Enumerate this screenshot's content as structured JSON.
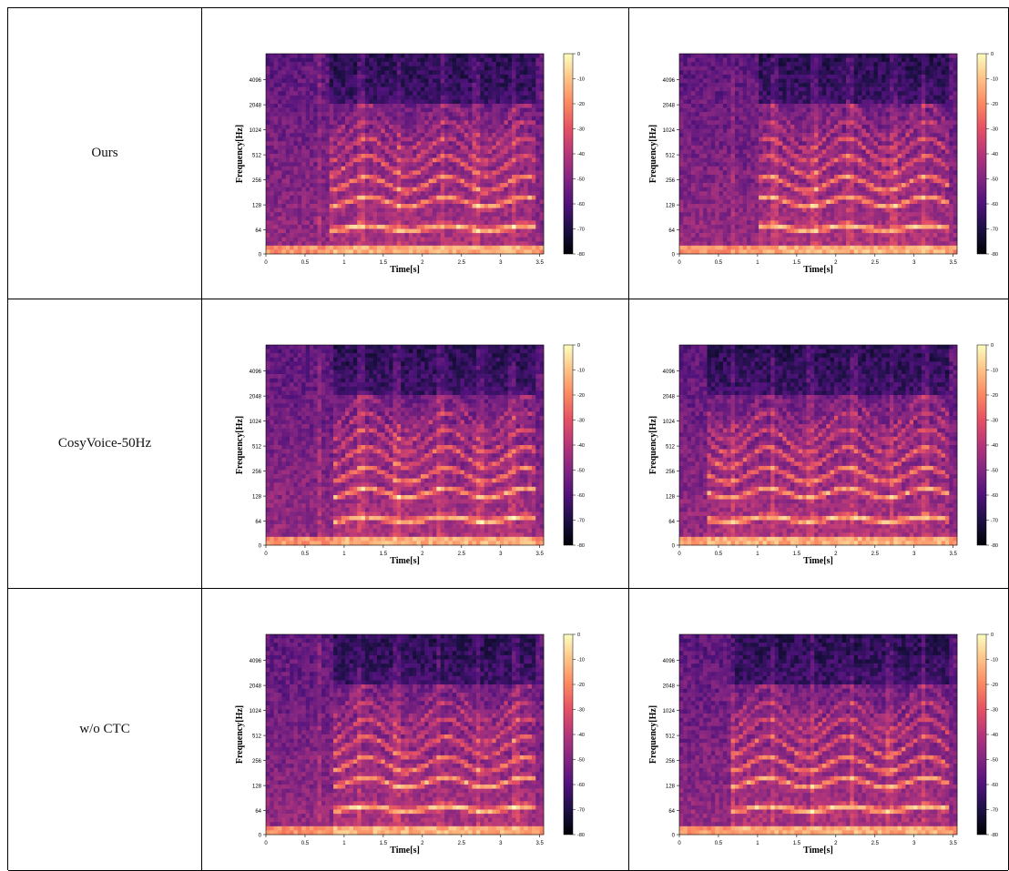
{
  "table": {
    "rows": [
      {
        "label": "Ours",
        "panels": [
          {
            "variant": "a"
          },
          {
            "variant": "b"
          }
        ]
      },
      {
        "label": "CosyVoice-50Hz",
        "panels": [
          {
            "variant": "c"
          },
          {
            "variant": "d"
          }
        ]
      },
      {
        "label": "w/o CTC",
        "panels": [
          {
            "variant": "e"
          },
          {
            "variant": "f"
          }
        ]
      }
    ]
  },
  "spectrogram": {
    "xlabel": "Time[s]",
    "ylabel": "Frequency[Hz]",
    "x_ticks": [
      "0",
      "0.5",
      "1",
      "1.5",
      "2",
      "2.5",
      "3",
      "3.5"
    ],
    "y_ticks": [
      "0",
      "64",
      "128",
      "256",
      "512",
      "1024",
      "2048",
      "4096"
    ],
    "colorbar_ticks": [
      "0",
      "-10",
      "-20",
      "-30",
      "-40",
      "-50",
      "-60",
      "-70",
      "-80"
    ],
    "colormap": [
      "#000004",
      "#1c1044",
      "#4f127b",
      "#812581",
      "#b5367a",
      "#e55064",
      "#fb8761",
      "#fec287",
      "#fcfdbf"
    ]
  }
}
